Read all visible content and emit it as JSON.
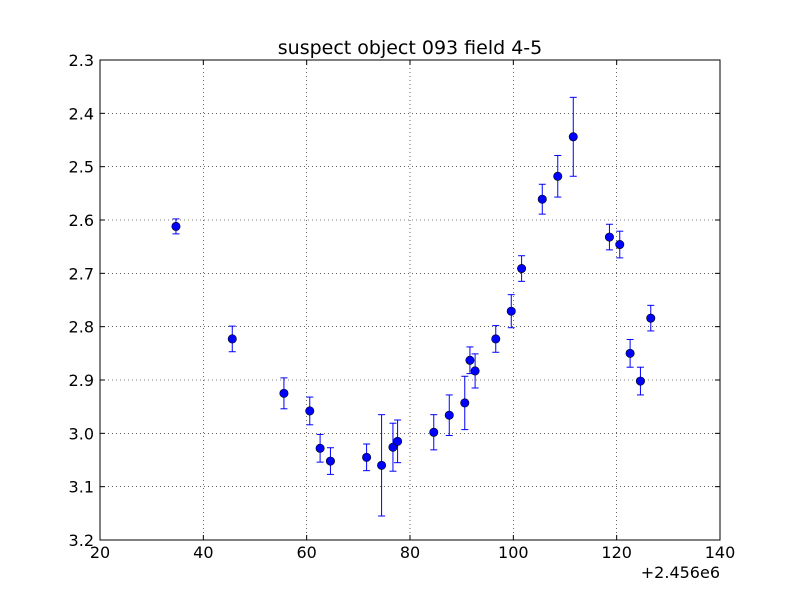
{
  "chart_data": {
    "type": "scatter",
    "title": "suspect object 093 field 4-5",
    "xlabel": "",
    "ylabel": "",
    "x_offset_label": "+2.456e6",
    "xlim": [
      20,
      140
    ],
    "ylim": [
      2.3,
      3.2
    ],
    "y_inverted": true,
    "grid": true,
    "grid_style": "dotted",
    "error_bars": true,
    "marker": "circle",
    "color": "#0000ff",
    "x_ticks": [
      "20",
      "40",
      "60",
      "80",
      "100",
      "120",
      "140"
    ],
    "y_ticks": [
      "2.3",
      "2.4",
      "2.5",
      "2.6",
      "2.7",
      "2.8",
      "2.9",
      "3.0",
      "3.1",
      "3.2"
    ],
    "series": [
      {
        "points": [
          {
            "x": 34.7,
            "y": 2.612,
            "err": 0.014
          },
          {
            "x": 45.6,
            "y": 2.823,
            "err": 0.024
          },
          {
            "x": 55.6,
            "y": 2.925,
            "err": 0.029
          },
          {
            "x": 60.6,
            "y": 2.958,
            "err": 0.026
          },
          {
            "x": 62.6,
            "y": 3.028,
            "err": 0.026
          },
          {
            "x": 64.6,
            "y": 3.052,
            "err": 0.025
          },
          {
            "x": 71.6,
            "y": 3.045,
            "err": 0.025
          },
          {
            "x": 74.5,
            "y": 3.06,
            "err": 0.095
          },
          {
            "x": 76.7,
            "y": 3.026,
            "err": 0.045
          },
          {
            "x": 77.6,
            "y": 3.015,
            "err": 0.04
          },
          {
            "x": 84.6,
            "y": 2.998,
            "err": 0.033
          },
          {
            "x": 87.6,
            "y": 2.966,
            "err": 0.038
          },
          {
            "x": 90.6,
            "y": 2.943,
            "err": 0.05
          },
          {
            "x": 91.6,
            "y": 2.863,
            "err": 0.025
          },
          {
            "x": 92.6,
            "y": 2.883,
            "err": 0.032
          },
          {
            "x": 96.6,
            "y": 2.823,
            "err": 0.025
          },
          {
            "x": 99.6,
            "y": 2.771,
            "err": 0.031
          },
          {
            "x": 101.6,
            "y": 2.691,
            "err": 0.024
          },
          {
            "x": 105.6,
            "y": 2.561,
            "err": 0.028
          },
          {
            "x": 108.6,
            "y": 2.518,
            "err": 0.039
          },
          {
            "x": 111.6,
            "y": 2.444,
            "err": 0.074
          },
          {
            "x": 118.6,
            "y": 2.632,
            "err": 0.024
          },
          {
            "x": 120.6,
            "y": 2.646,
            "err": 0.025
          },
          {
            "x": 122.6,
            "y": 2.85,
            "err": 0.026
          },
          {
            "x": 124.6,
            "y": 2.902,
            "err": 0.026
          },
          {
            "x": 126.6,
            "y": 2.784,
            "err": 0.024
          }
        ]
      }
    ]
  }
}
